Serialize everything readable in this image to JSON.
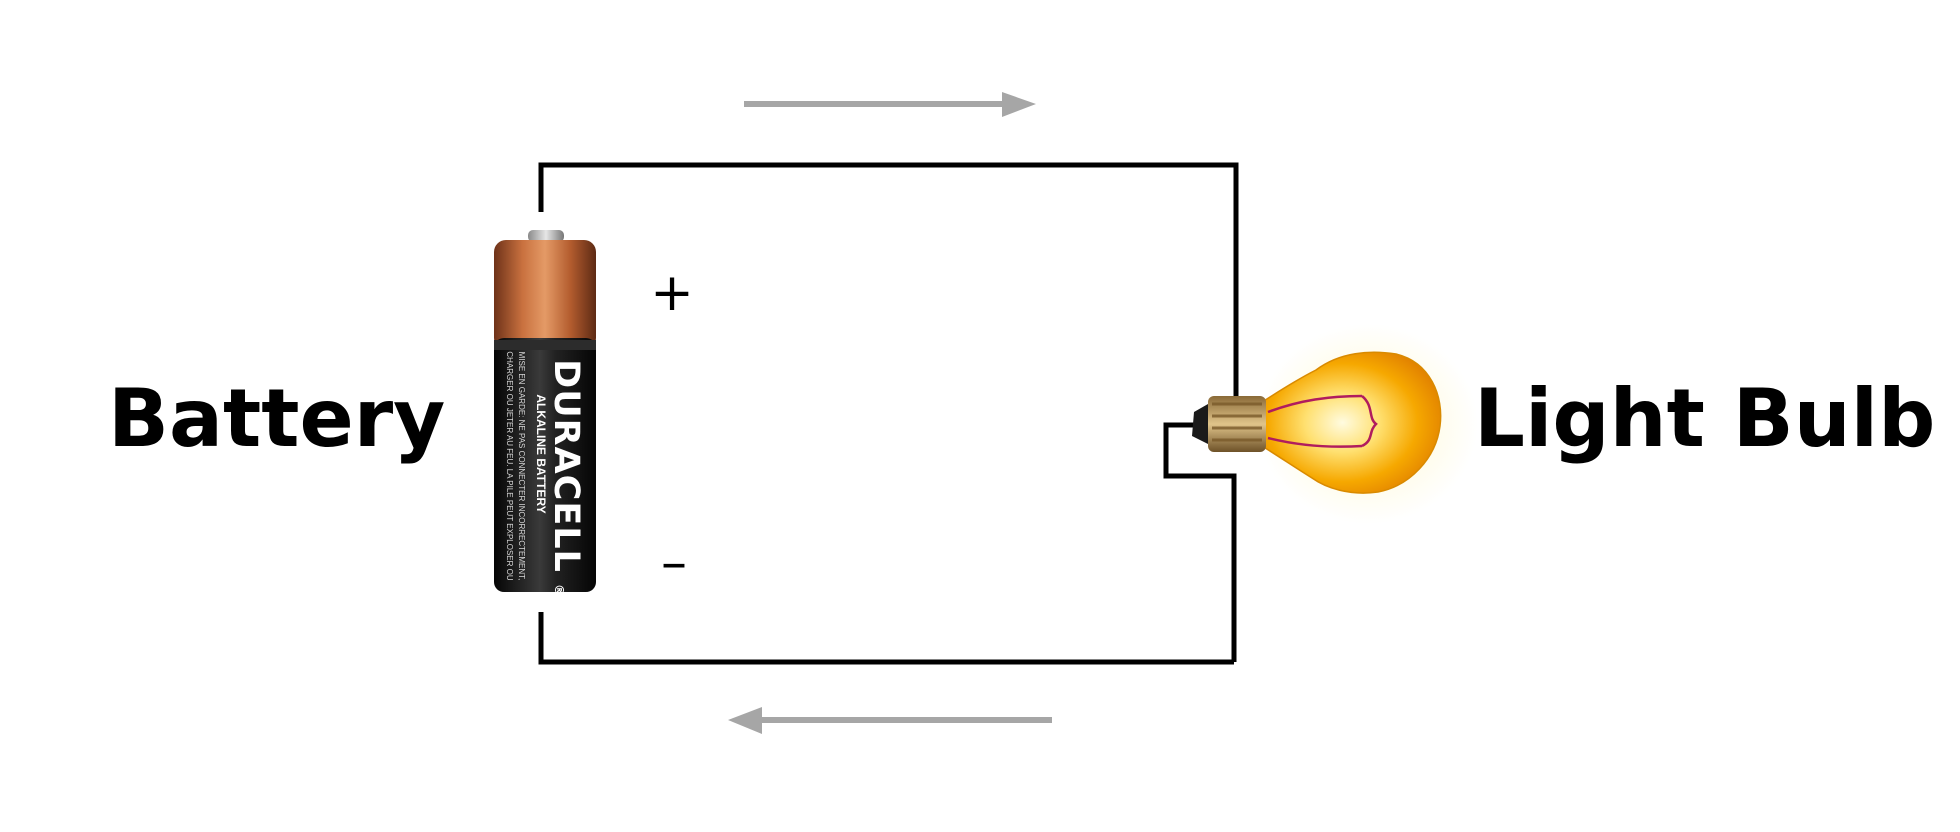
{
  "labels": {
    "battery": "Battery",
    "bulb": "Light Bulb",
    "plus": "+",
    "minus": "–"
  },
  "battery_print": {
    "brand": "DURACELL",
    "registered": "®",
    "type": "ALKALINE BATTERY",
    "warning_line_1": "MISE EN GARDE: NE PAS CONNECTER INCORRECTEMENT,",
    "warning_line_2": "CHARGER OU JETER AU FEU. LA PILE PEUT EXPLOSER OU"
  },
  "colors": {
    "wire": "#000000",
    "current_arrow": "#a6a6a6",
    "battery_copper": "#c0673a",
    "battery_black": "#1a1a1a",
    "bulb_glass": "#f5a300",
    "bulb_glow": "#fff6c8",
    "bulb_base": "#b8945a"
  },
  "icons": {
    "battery": "aa-battery-icon",
    "bulb": "light-bulb-icon",
    "arrow_top": "arrow-right-icon",
    "arrow_bottom": "arrow-left-icon"
  }
}
